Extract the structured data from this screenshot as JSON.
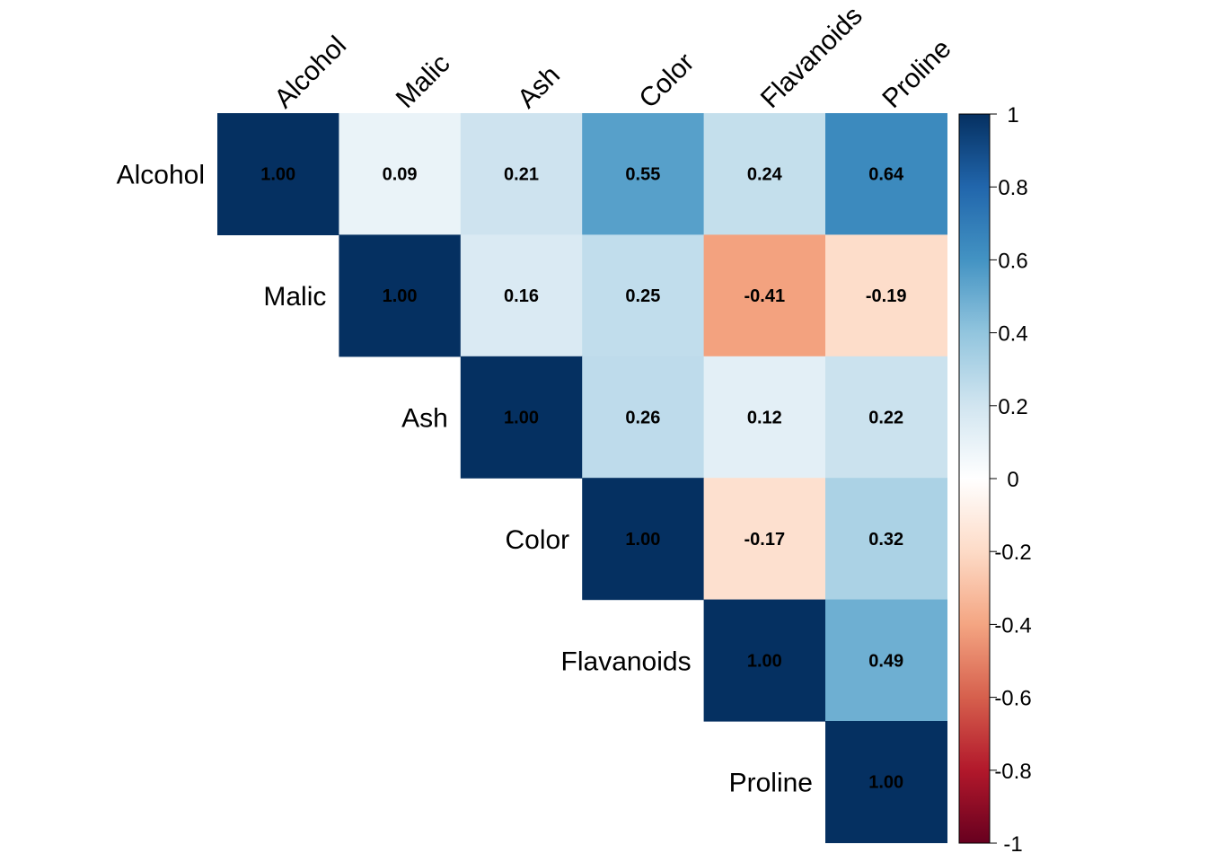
{
  "chart_data": {
    "type": "heatmap",
    "subtype": "correlation-matrix-upper",
    "variables": [
      "Alcohol",
      "Malic",
      "Ash",
      "Color",
      "Flavanoids",
      "Proline"
    ],
    "matrix": [
      [
        1.0,
        0.09,
        0.21,
        0.55,
        0.24,
        0.64
      ],
      [
        0.09,
        1.0,
        0.16,
        0.25,
        -0.41,
        -0.19
      ],
      [
        0.21,
        0.16,
        1.0,
        0.26,
        0.12,
        0.22
      ],
      [
        0.55,
        0.25,
        0.26,
        1.0,
        -0.17,
        0.32
      ],
      [
        0.24,
        -0.41,
        0.12,
        -0.17,
        1.0,
        0.49
      ],
      [
        0.64,
        -0.19,
        0.22,
        0.32,
        0.49,
        1.0
      ]
    ],
    "value_labels": [
      [
        "1.00",
        "0.09",
        "0.21",
        "0.55",
        "0.24",
        "0.64"
      ],
      [
        "",
        "1.00",
        "0.16",
        "0.25",
        "-0.41",
        "-0.19"
      ],
      [
        "",
        "",
        "1.00",
        "0.26",
        "0.12",
        "0.22"
      ],
      [
        "",
        "",
        "",
        "1.00",
        "-0.17",
        "0.32"
      ],
      [
        "",
        "",
        "",
        "",
        "1.00",
        "0.49"
      ],
      [
        "",
        "",
        "",
        "",
        "",
        "1.00"
      ]
    ],
    "triangle": "upper",
    "color_scale": {
      "min": -1,
      "max": 1,
      "ticks": [
        "1",
        "0.8",
        "0.6",
        "0.4",
        "0.2",
        "0",
        "-0.2",
        "-0.4",
        "-0.6",
        "-0.8",
        "-1"
      ],
      "tick_values": [
        1,
        0.8,
        0.6,
        0.4,
        0.2,
        0,
        -0.2,
        -0.4,
        -0.6,
        -0.8,
        -1
      ],
      "palette": [
        "#67001F",
        "#B2182B",
        "#D6604D",
        "#F4A582",
        "#FDDBC7",
        "#FFFFFF",
        "#D1E5F0",
        "#92C5DE",
        "#4393C3",
        "#2166AC",
        "#053061"
      ]
    },
    "legend_position": "right"
  }
}
